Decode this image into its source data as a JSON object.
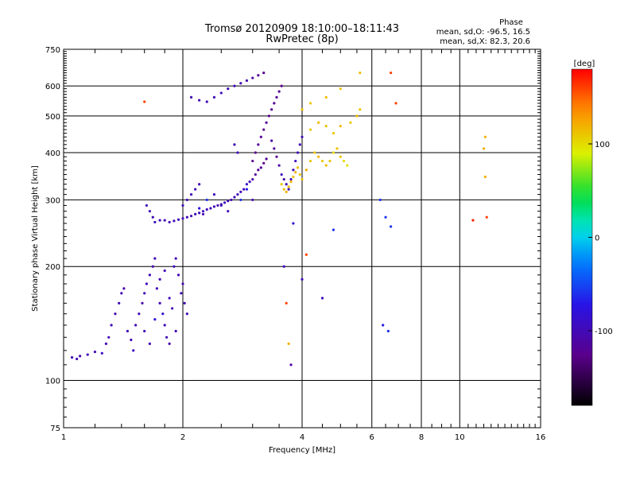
{
  "chart_data": {
    "type": "scatter",
    "title": "Tromsø 20120909 18:10:00–18:11:43",
    "subtitle": "RwPretec (8p)",
    "xlabel": "Frequency [MHz]",
    "ylabel": "Stationary phase Virtual Height [km]",
    "x_scale": "log",
    "y_scale": "log",
    "xlim": [
      1,
      16
    ],
    "ylim": [
      75,
      750
    ],
    "x_ticks": [
      "1",
      "2",
      "4",
      "6",
      "8",
      "10",
      "16"
    ],
    "x_tick_values": [
      1,
      2,
      4,
      6,
      8,
      10,
      16
    ],
    "y_ticks": [
      "75",
      "100",
      "200",
      "300",
      "400",
      "500",
      "600",
      "750"
    ],
    "y_tick_values": [
      75,
      100,
      200,
      300,
      400,
      500,
      600,
      750
    ],
    "grid": true,
    "phase_legend": {
      "title": "Phase",
      "line1": "mean, sd,O: -96.5, 16.5",
      "line2": "mean, sd,X: 82.3, 20.6"
    },
    "colorbar": {
      "label": "[deg]",
      "range": [
        -180,
        180
      ],
      "ticks": [
        "100",
        "0",
        "-100"
      ],
      "tick_values": [
        100,
        0,
        -100
      ]
    },
    "points": [
      [
        1.05,
        115,
        -100
      ],
      [
        1.08,
        114,
        -100
      ],
      [
        1.1,
        116,
        -105
      ],
      [
        1.15,
        117,
        -100
      ],
      [
        1.2,
        119,
        -100
      ],
      [
        1.25,
        118,
        -95
      ],
      [
        1.28,
        125,
        -100
      ],
      [
        1.3,
        130,
        -100
      ],
      [
        1.32,
        140,
        -100
      ],
      [
        1.35,
        150,
        -105
      ],
      [
        1.38,
        160,
        -100
      ],
      [
        1.4,
        170,
        -100
      ],
      [
        1.42,
        175,
        -105
      ],
      [
        1.45,
        135,
        -100
      ],
      [
        1.48,
        128,
        -100
      ],
      [
        1.5,
        120,
        -95
      ],
      [
        1.52,
        140,
        -100
      ],
      [
        1.55,
        150,
        -100
      ],
      [
        1.58,
        160,
        -110
      ],
      [
        1.6,
        170,
        -100
      ],
      [
        1.62,
        180,
        -100
      ],
      [
        1.65,
        190,
        -100
      ],
      [
        1.68,
        200,
        -105
      ],
      [
        1.7,
        210,
        -100
      ],
      [
        1.72,
        175,
        -100
      ],
      [
        1.75,
        160,
        -100
      ],
      [
        1.78,
        150,
        -85
      ],
      [
        1.8,
        140,
        -100
      ],
      [
        1.82,
        130,
        -100
      ],
      [
        1.85,
        165,
        -100
      ],
      [
        1.88,
        155,
        -100
      ],
      [
        1.9,
        200,
        -100
      ],
      [
        1.92,
        210,
        -100
      ],
      [
        1.95,
        190,
        -100
      ],
      [
        1.98,
        170,
        -100
      ],
      [
        2.0,
        180,
        -105
      ],
      [
        2.02,
        160,
        -100
      ],
      [
        2.05,
        150,
        -100
      ],
      [
        1.6,
        135,
        -100
      ],
      [
        1.65,
        125,
        -100
      ],
      [
        1.7,
        145,
        -80
      ],
      [
        1.75,
        185,
        -100
      ],
      [
        1.8,
        195,
        -100
      ],
      [
        1.85,
        125,
        -100
      ],
      [
        1.92,
        135,
        -100
      ],
      [
        1.62,
        290,
        -100
      ],
      [
        1.65,
        280,
        -100
      ],
      [
        1.68,
        270,
        -100
      ],
      [
        1.7,
        262,
        -90
      ],
      [
        1.75,
        265,
        -100
      ],
      [
        1.8,
        265,
        -100
      ],
      [
        1.85,
        262,
        -100
      ],
      [
        1.9,
        264,
        -100
      ],
      [
        1.95,
        266,
        -100
      ],
      [
        2.0,
        268,
        -100
      ],
      [
        2.05,
        270,
        -100
      ],
      [
        2.1,
        272,
        -100
      ],
      [
        2.15,
        275,
        -100
      ],
      [
        2.2,
        277,
        -95
      ],
      [
        2.25,
        280,
        -100
      ],
      [
        2.3,
        283,
        -100
      ],
      [
        2.35,
        285,
        -100
      ],
      [
        2.4,
        288,
        -100
      ],
      [
        2.45,
        290,
        -100
      ],
      [
        2.5,
        292,
        -100
      ],
      [
        2.55,
        295,
        -100
      ],
      [
        2.6,
        298,
        -100
      ],
      [
        2.65,
        300,
        -100
      ],
      [
        2.7,
        305,
        -100
      ],
      [
        2.75,
        310,
        -100
      ],
      [
        2.8,
        315,
        -100
      ],
      [
        2.85,
        320,
        -100
      ],
      [
        2.9,
        330,
        -90
      ],
      [
        2.95,
        335,
        -100
      ],
      [
        3.0,
        340,
        -110
      ],
      [
        3.05,
        350,
        -115
      ],
      [
        3.1,
        360,
        -120
      ],
      [
        3.15,
        365,
        -120
      ],
      [
        3.2,
        375,
        -125
      ],
      [
        3.25,
        385,
        -120
      ],
      [
        2.0,
        290,
        -100
      ],
      [
        2.05,
        300,
        -100
      ],
      [
        2.1,
        310,
        -100
      ],
      [
        2.15,
        320,
        -100
      ],
      [
        2.2,
        330,
        -100
      ],
      [
        2.3,
        300,
        -60
      ],
      [
        2.4,
        310,
        -100
      ],
      [
        2.5,
        290,
        -100
      ],
      [
        2.6,
        280,
        -100
      ],
      [
        2.8,
        300,
        -60
      ],
      [
        2.9,
        320,
        -70
      ],
      [
        3.0,
        300,
        -100
      ],
      [
        2.2,
        285,
        -80
      ],
      [
        2.25,
        275,
        -100
      ],
      [
        3.0,
        380,
        -120
      ],
      [
        3.05,
        400,
        -125
      ],
      [
        3.1,
        420,
        -120
      ],
      [
        3.15,
        440,
        -120
      ],
      [
        3.2,
        460,
        -125
      ],
      [
        3.25,
        480,
        -120
      ],
      [
        3.3,
        500,
        -125
      ],
      [
        3.35,
        520,
        -120
      ],
      [
        3.4,
        540,
        -120
      ],
      [
        3.45,
        560,
        -120
      ],
      [
        3.5,
        580,
        -120
      ],
      [
        3.55,
        600,
        -125
      ],
      [
        3.35,
        430,
        -110
      ],
      [
        3.4,
        410,
        -115
      ],
      [
        3.45,
        390,
        -120
      ],
      [
        3.5,
        370,
        -110
      ],
      [
        3.55,
        350,
        -100
      ],
      [
        3.6,
        340,
        -110
      ],
      [
        3.65,
        330,
        -100
      ],
      [
        3.7,
        320,
        -100
      ],
      [
        3.75,
        340,
        -100
      ],
      [
        3.8,
        360,
        -100
      ],
      [
        3.85,
        380,
        -95
      ],
      [
        3.9,
        400,
        -100
      ],
      [
        3.95,
        420,
        -100
      ],
      [
        4.0,
        440,
        -100
      ],
      [
        3.55,
        330,
        110
      ],
      [
        3.6,
        320,
        115
      ],
      [
        3.65,
        315,
        120
      ],
      [
        3.7,
        325,
        110
      ],
      [
        3.75,
        335,
        120
      ],
      [
        3.8,
        345,
        110
      ],
      [
        3.85,
        355,
        120
      ],
      [
        3.9,
        365,
        115
      ],
      [
        3.95,
        350,
        110
      ],
      [
        4.0,
        340,
        115
      ],
      [
        4.1,
        360,
        120
      ],
      [
        4.2,
        380,
        110
      ],
      [
        4.3,
        400,
        110
      ],
      [
        4.4,
        390,
        120
      ],
      [
        4.5,
        380,
        110
      ],
      [
        4.6,
        370,
        115
      ],
      [
        4.7,
        380,
        110
      ],
      [
        4.8,
        400,
        100
      ],
      [
        4.9,
        410,
        110
      ],
      [
        5.0,
        390,
        110
      ],
      [
        5.1,
        380,
        100
      ],
      [
        5.2,
        370,
        95
      ],
      [
        4.2,
        460,
        110
      ],
      [
        4.4,
        480,
        115
      ],
      [
        4.6,
        470,
        110
      ],
      [
        4.8,
        450,
        110
      ],
      [
        5.0,
        470,
        115
      ],
      [
        5.3,
        480,
        110
      ],
      [
        5.5,
        500,
        115
      ],
      [
        5.6,
        520,
        110
      ],
      [
        4.0,
        520,
        115
      ],
      [
        4.2,
        540,
        110
      ],
      [
        4.6,
        560,
        115
      ],
      [
        5.0,
        590,
        110
      ],
      [
        5.6,
        650,
        115
      ],
      [
        2.1,
        560,
        -100
      ],
      [
        2.2,
        550,
        -100
      ],
      [
        2.3,
        545,
        -100
      ],
      [
        2.4,
        560,
        -100
      ],
      [
        2.5,
        575,
        -100
      ],
      [
        2.6,
        590,
        -100
      ],
      [
        2.7,
        600,
        -100
      ],
      [
        2.8,
        610,
        -100
      ],
      [
        2.9,
        620,
        -105
      ],
      [
        3.0,
        630,
        -110
      ],
      [
        3.1,
        640,
        -120
      ],
      [
        3.2,
        650,
        -125
      ],
      [
        2.7,
        420,
        -100
      ],
      [
        2.75,
        400,
        -100
      ],
      [
        1.6,
        545,
        160
      ],
      [
        6.3,
        300,
        -60
      ],
      [
        6.5,
        270,
        -60
      ],
      [
        6.7,
        255,
        -60
      ],
      [
        6.4,
        140,
        -70
      ],
      [
        6.6,
        135,
        -60
      ],
      [
        6.7,
        650,
        160
      ],
      [
        6.9,
        540,
        160
      ],
      [
        10.8,
        265,
        170
      ],
      [
        11.7,
        270,
        160
      ],
      [
        11.6,
        440,
        120
      ],
      [
        11.5,
        410,
        120
      ],
      [
        11.6,
        345,
        120
      ],
      [
        3.6,
        200,
        -100
      ],
      [
        3.65,
        160,
        160
      ],
      [
        3.7,
        125,
        120
      ],
      [
        3.75,
        110,
        -110
      ],
      [
        3.8,
        260,
        -80
      ],
      [
        4.1,
        215,
        160
      ],
      [
        4.0,
        185,
        -100
      ],
      [
        4.5,
        165,
        -100
      ],
      [
        4.8,
        250,
        -60
      ]
    ]
  }
}
